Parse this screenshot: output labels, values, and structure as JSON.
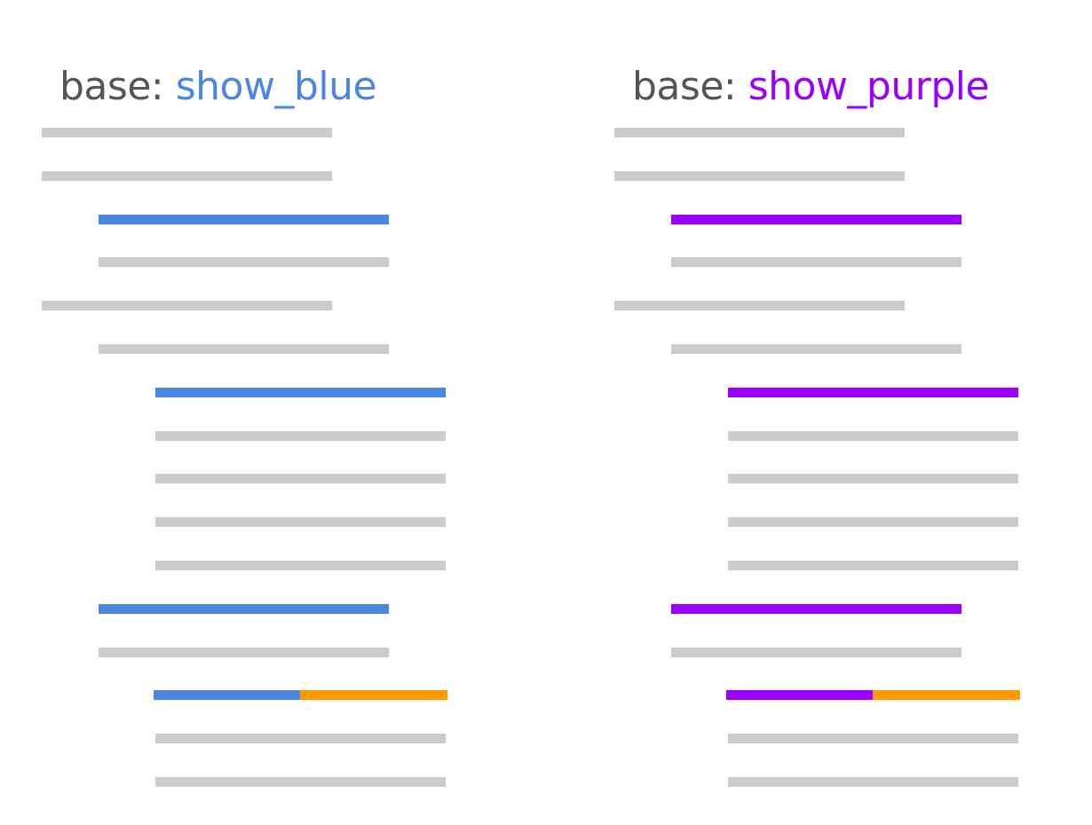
{
  "colors": {
    "gray": "#cccccc",
    "blue": "#4a86e2",
    "purple": "#9900ff",
    "orange": "#ff9900",
    "prefix": "#555555"
  },
  "panels": [
    {
      "prefix": "base:",
      "name": "show_blue",
      "accent": "blue",
      "rows": [
        {
          "indent": 0,
          "style": "gray"
        },
        {
          "indent": 0,
          "style": "gray"
        },
        {
          "indent": 1,
          "style": "accent"
        },
        {
          "indent": 1,
          "style": "gray"
        },
        {
          "indent": 0,
          "style": "gray"
        },
        {
          "indent": 1,
          "style": "gray"
        },
        {
          "indent": 2,
          "style": "accent"
        },
        {
          "indent": 2,
          "style": "gray"
        },
        {
          "indent": 2,
          "style": "gray"
        },
        {
          "indent": 2,
          "style": "gray"
        },
        {
          "indent": 2,
          "style": "gray"
        },
        {
          "indent": 1,
          "style": "accent"
        },
        {
          "indent": 1,
          "style": "gray"
        },
        {
          "indent": 2,
          "style": "split"
        },
        {
          "indent": 2,
          "style": "gray"
        },
        {
          "indent": 2,
          "style": "gray"
        }
      ]
    },
    {
      "prefix": "base:",
      "name": "show_purple",
      "accent": "purple",
      "rows": [
        {
          "indent": 0,
          "style": "gray"
        },
        {
          "indent": 0,
          "style": "gray"
        },
        {
          "indent": 1,
          "style": "accent"
        },
        {
          "indent": 1,
          "style": "gray"
        },
        {
          "indent": 0,
          "style": "gray"
        },
        {
          "indent": 1,
          "style": "gray"
        },
        {
          "indent": 2,
          "style": "accent"
        },
        {
          "indent": 2,
          "style": "gray"
        },
        {
          "indent": 2,
          "style": "gray"
        },
        {
          "indent": 2,
          "style": "gray"
        },
        {
          "indent": 2,
          "style": "gray"
        },
        {
          "indent": 1,
          "style": "accent"
        },
        {
          "indent": 1,
          "style": "gray"
        },
        {
          "indent": 2,
          "style": "split"
        },
        {
          "indent": 2,
          "style": "gray"
        },
        {
          "indent": 2,
          "style": "gray"
        }
      ]
    }
  ]
}
